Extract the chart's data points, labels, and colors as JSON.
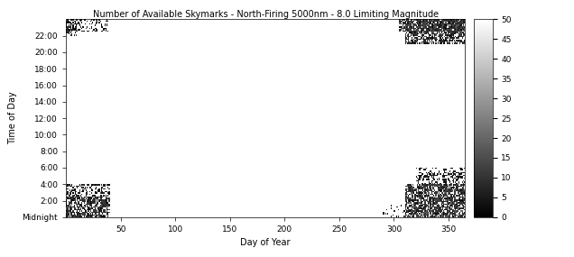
{
  "title": "Number of Available Skymarks - North-Firing 5000nm - 8.0 Limiting Magnitude",
  "xlabel": "Day of Year",
  "ylabel": "Time of Day",
  "xlim": [
    0,
    365
  ],
  "ylim_hours": [
    0,
    24
  ],
  "colorbar_ticks": [
    0,
    5,
    10,
    15,
    20,
    25,
    30,
    35,
    40,
    45,
    50
  ],
  "clim": [
    0,
    50
  ],
  "ytick_labels": [
    "Midnight",
    "2:00",
    "4:00",
    "6:00",
    "8:00",
    "10:00",
    "12:00",
    "14:00",
    "16:00",
    "18:00",
    "20:00",
    "22:00"
  ],
  "ytick_positions": [
    0,
    2,
    4,
    6,
    8,
    10,
    12,
    14,
    16,
    18,
    20,
    22
  ],
  "xtick_positions": [
    50,
    100,
    150,
    200,
    250,
    300,
    350
  ],
  "days": 365,
  "seed": 42,
  "left_day_end": 40,
  "right_day_start": 310,
  "background_color": "#ffffff",
  "title_fontsize": 7,
  "label_fontsize": 7,
  "tick_fontsize": 6.5
}
